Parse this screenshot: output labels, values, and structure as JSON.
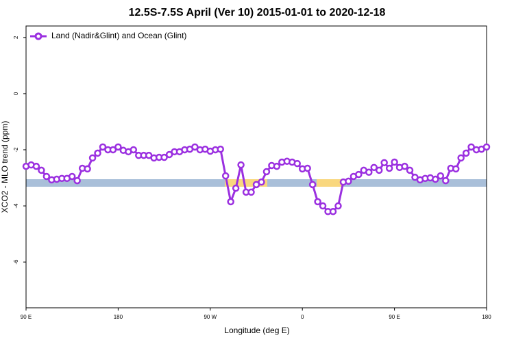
{
  "chart_data": {
    "type": "line",
    "title": "12.5S-7.5S April (Ver 10)   2015-01-01 to 2020-12-18",
    "xlabel": "Longitude (deg E)",
    "ylabel": "XCO2 - MLO trend (ppm)",
    "xlim": [
      90,
      540
    ],
    "ylim": [
      2.41,
      -7.63
    ],
    "xticks": [
      {
        "value": 90,
        "label": "90 E"
      },
      180,
      {
        "value": 270,
        "label": "90 W"
      },
      {
        "value": 360,
        "label": "0"
      },
      {
        "value": 450,
        "label": "90 E"
      },
      {
        "value": 540,
        "label": "180"
      }
    ],
    "yticks": [
      2,
      0,
      -2,
      -4,
      -6
    ],
    "legend": "top-left",
    "x": [
      90,
      95,
      100,
      105,
      110,
      115,
      120,
      125,
      130,
      135,
      140,
      145,
      150,
      155,
      160,
      165,
      170,
      175,
      180,
      185,
      190,
      195,
      200,
      205,
      210,
      215,
      220,
      225,
      230,
      235,
      240,
      245,
      250,
      255,
      260,
      265,
      270,
      275,
      280,
      285,
      290,
      295,
      300,
      305,
      310,
      315,
      320,
      325,
      330,
      335,
      340,
      345,
      350,
      355,
      360,
      365,
      370,
      375,
      380,
      385,
      390,
      395,
      400,
      405,
      410,
      415,
      420,
      425,
      430,
      435,
      440,
      445,
      450,
      455,
      460,
      465,
      470,
      475,
      480,
      485,
      490,
      495,
      500,
      505,
      510,
      515,
      520,
      525,
      530,
      535,
      540
    ],
    "series": [
      {
        "name": "Land (Nadir&Glint) and Ocean (Glint)",
        "color": "#9b30e0",
        "values": [
          -2.59,
          -2.54,
          -2.59,
          -2.73,
          -2.95,
          -3.07,
          -3.05,
          -3.02,
          -3.02,
          -2.95,
          -3.1,
          -2.66,
          -2.68,
          -2.29,
          -2.12,
          -1.9,
          -2.0,
          -2.0,
          -1.9,
          -2.02,
          -2.07,
          -2.0,
          -2.2,
          -2.2,
          -2.2,
          -2.29,
          -2.27,
          -2.27,
          -2.17,
          -2.07,
          -2.07,
          -2.0,
          -1.98,
          -1.9,
          -2.0,
          -1.98,
          -2.05,
          -2.0,
          -1.98,
          -2.93,
          -3.85,
          -3.37,
          -2.54,
          -3.51,
          -3.51,
          -3.24,
          -3.15,
          -2.78,
          -2.56,
          -2.59,
          -2.44,
          -2.41,
          -2.44,
          -2.49,
          -2.68,
          -2.66,
          -3.24,
          -3.85,
          -4.0,
          -4.2,
          -4.2,
          -4.0,
          -3.15,
          -3.12,
          -2.95,
          -2.88,
          -2.73,
          -2.8,
          -2.63,
          -2.73,
          -2.46,
          -2.66,
          -2.44,
          -2.63,
          -2.59,
          -2.73,
          -2.98,
          -3.07,
          -3.02,
          -3.0,
          -3.05,
          -2.93,
          -3.1,
          -2.66,
          -2.68,
          -2.29,
          -2.12,
          -1.9,
          -2.0,
          -1.98,
          -1.9
        ]
      }
    ]
  }
}
